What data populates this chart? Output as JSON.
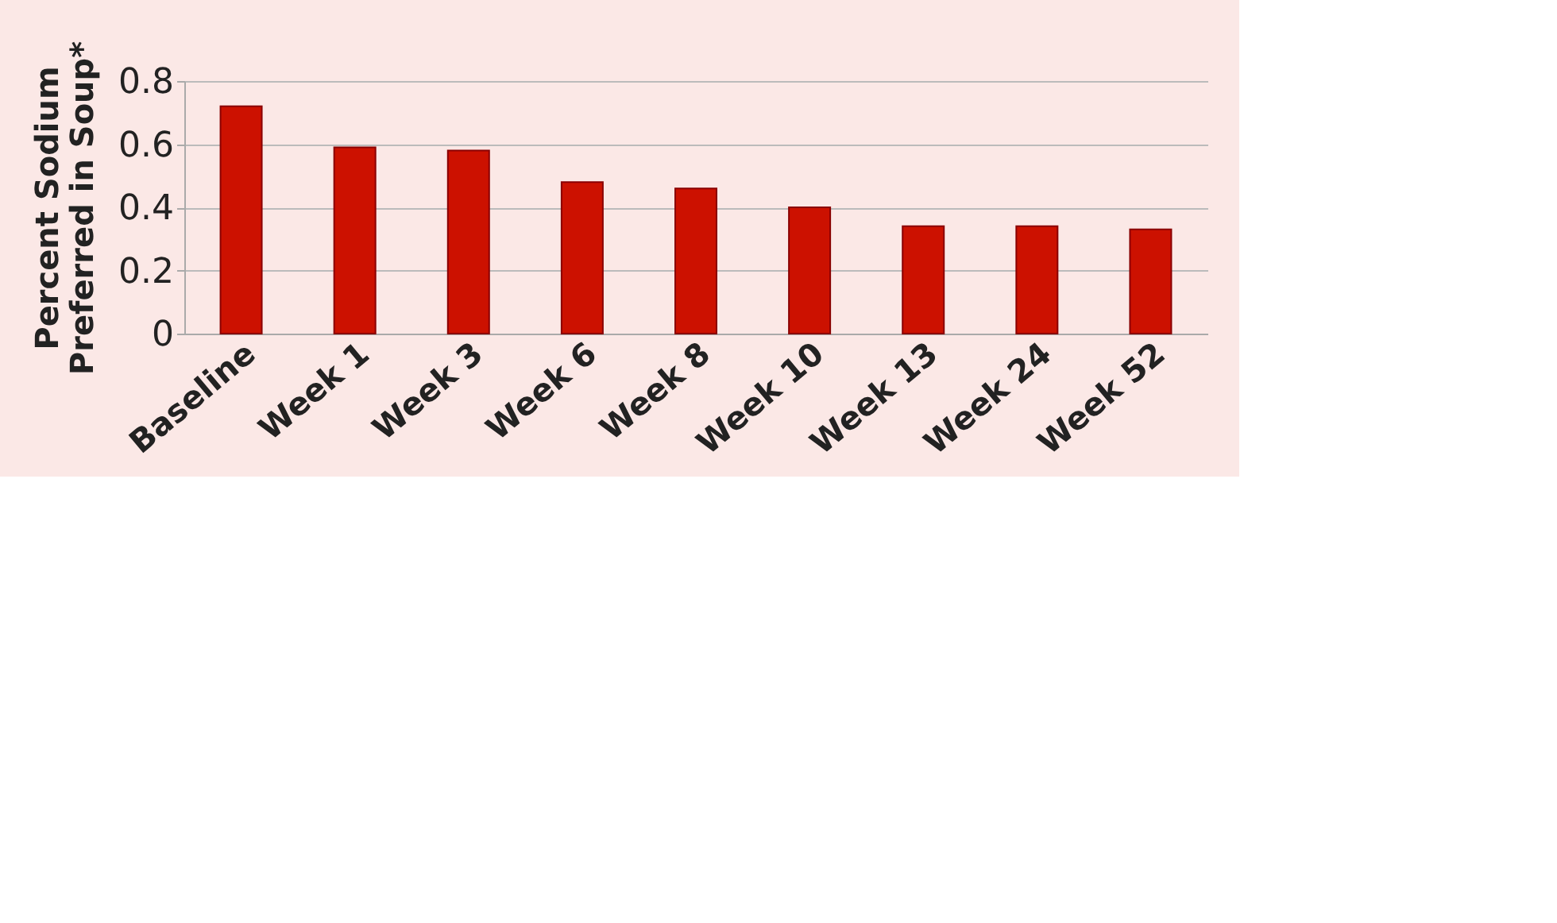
{
  "chart_data": {
    "type": "bar",
    "ylabel": "Percent Sodium\nPreferred in Soup*",
    "categories": [
      "Baseline",
      "Week 1",
      "Week 3",
      "Week 6",
      "Week 8",
      "Week 10",
      "Week 13",
      "Week 24",
      "Week 52"
    ],
    "values": [
      0.72,
      0.59,
      0.58,
      0.48,
      0.46,
      0.4,
      0.34,
      0.34,
      0.33
    ],
    "color": "#cc1100",
    "ylim": [
      0,
      0.8
    ],
    "yticks": [
      0,
      0.2,
      0.4,
      0.6,
      0.8
    ],
    "grid": "y"
  }
}
